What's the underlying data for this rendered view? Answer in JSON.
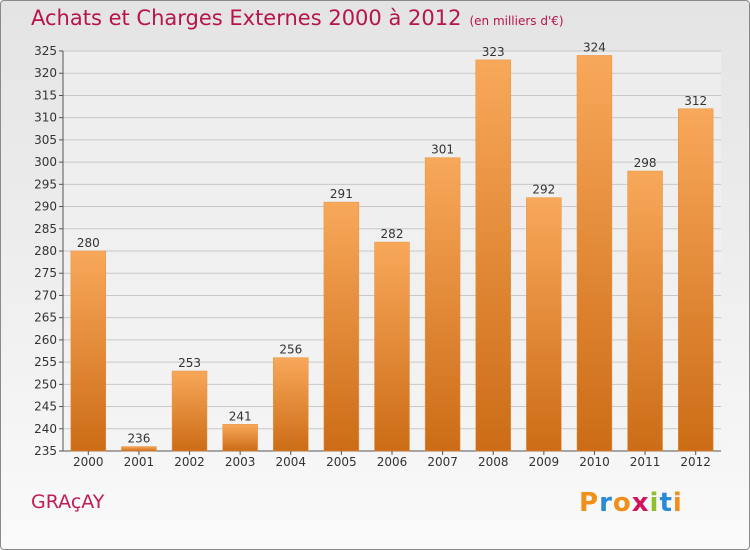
{
  "header": {
    "title": "Achats et Charges Externes 2000 à 2012",
    "subtitle": "(en milliers d'€)"
  },
  "footer": {
    "city": "GRAçAY",
    "logo_text": "Proxiti"
  },
  "colors": {
    "title": "#b7134d",
    "bar_top": "#f8a85a",
    "bar_bottom": "#cc6c16",
    "logo_letters": [
      "#f09018",
      "#2a8ad6",
      "#f09018",
      "#d0145a",
      "#90c030",
      "#2a8ad6",
      "#f09018"
    ]
  },
  "chart_data": {
    "type": "bar",
    "title": "Achats et Charges Externes 2000 à 2012",
    "subtitle": "(en milliers d'€)",
    "categories": [
      "2000",
      "2001",
      "2002",
      "2003",
      "2004",
      "2005",
      "2006",
      "2007",
      "2008",
      "2009",
      "2010",
      "2011",
      "2012"
    ],
    "values": [
      280,
      236,
      253,
      241,
      256,
      291,
      282,
      301,
      323,
      292,
      324,
      298,
      312
    ],
    "xlabel": "",
    "ylabel": "",
    "ylim": [
      235,
      325
    ],
    "yticks": [
      235,
      240,
      245,
      250,
      255,
      260,
      265,
      270,
      275,
      280,
      285,
      290,
      295,
      300,
      305,
      310,
      315,
      320,
      325
    ],
    "grid": true,
    "legend": "none"
  }
}
